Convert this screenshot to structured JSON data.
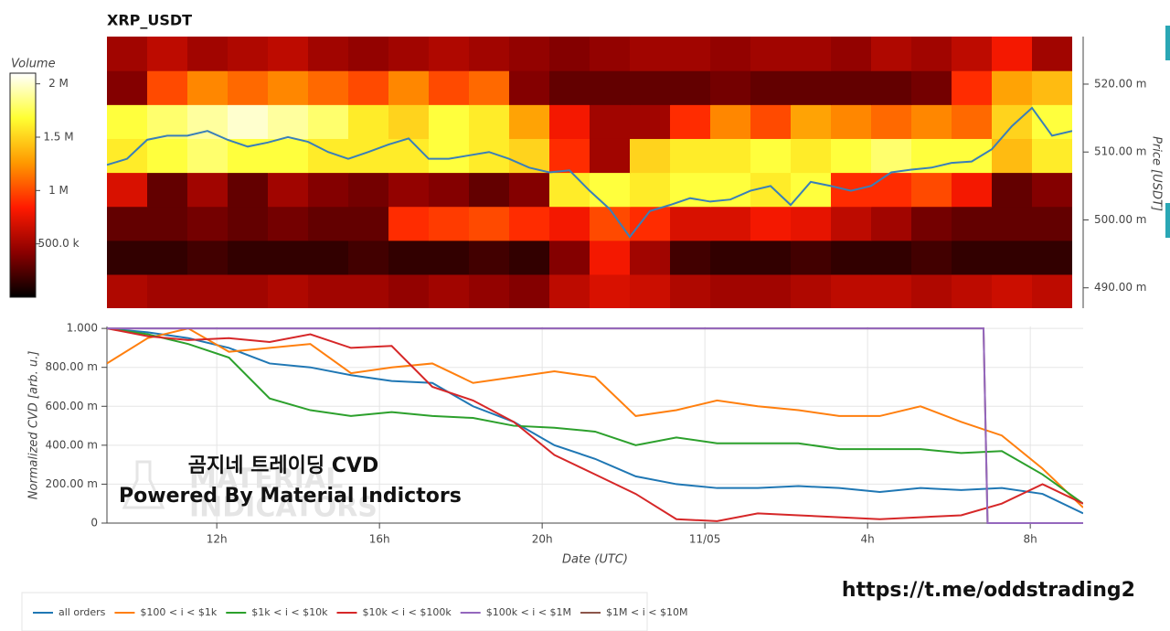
{
  "chart_data": [
    {
      "type": "heatmap",
      "title": "XRP_USDT",
      "xlim": [
        9.3,
        33.3
      ],
      "xbins": [
        9.3,
        10.3,
        11.3,
        12.3,
        13.3,
        14.3,
        15.3,
        16.3,
        17.3,
        18.3,
        19.3,
        20.3,
        21.3,
        22.3,
        23.3,
        24.3,
        25.3,
        26.3,
        27.3,
        28.3,
        29.3,
        30.3,
        31.3,
        32.3,
        33.3
      ],
      "ybins": [
        0.487,
        0.492,
        0.497,
        0.502,
        0.507,
        0.512,
        0.517,
        0.522,
        0.527
      ],
      "ylim": [
        0.487,
        0.527
      ],
      "yticks": [
        {
          "value": 0.49,
          "label": "490.00 m"
        },
        {
          "value": 0.5,
          "label": "500.00 m"
        },
        {
          "value": 0.51,
          "label": "510.00 m"
        },
        {
          "value": 0.52,
          "label": "520.00 m"
        }
      ],
      "ylabel": "Price [USDT]",
      "z": [
        [
          0.55,
          0.5,
          0.5,
          0.5,
          0.55,
          0.5,
          0.5,
          0.45,
          0.5,
          0.45,
          0.4,
          0.6,
          0.7,
          0.65,
          0.55,
          0.5,
          0.5,
          0.55,
          0.6,
          0.6,
          0.55,
          0.6,
          0.65,
          0.6
        ],
        [
          0.15,
          0.15,
          0.2,
          0.15,
          0.15,
          0.15,
          0.2,
          0.15,
          0.15,
          0.2,
          0.15,
          0.4,
          0.8,
          0.5,
          0.2,
          0.15,
          0.15,
          0.2,
          0.15,
          0.15,
          0.2,
          0.15,
          0.15,
          0.15
        ],
        [
          0.3,
          0.3,
          0.35,
          0.3,
          0.35,
          0.3,
          0.3,
          0.9,
          0.95,
          1.0,
          0.9,
          0.8,
          1.0,
          0.9,
          0.7,
          0.7,
          0.8,
          0.75,
          0.6,
          0.5,
          0.35,
          0.3,
          0.3,
          0.3
        ],
        [
          0.7,
          0.3,
          0.5,
          0.3,
          0.5,
          0.4,
          0.35,
          0.45,
          0.4,
          0.3,
          0.4,
          1.6,
          1.7,
          1.6,
          1.7,
          1.7,
          1.6,
          1.7,
          0.9,
          0.9,
          1.0,
          0.8,
          0.3,
          0.4
        ],
        [
          1.6,
          1.7,
          1.8,
          1.7,
          1.7,
          1.6,
          1.6,
          1.6,
          1.7,
          1.6,
          1.5,
          0.9,
          0.5,
          1.5,
          1.6,
          1.6,
          1.7,
          1.6,
          1.7,
          1.8,
          1.7,
          1.7,
          1.4,
          1.6
        ],
        [
          1.7,
          1.8,
          1.9,
          2.0,
          1.9,
          1.8,
          1.6,
          1.5,
          1.7,
          1.6,
          1.3,
          0.8,
          0.5,
          0.5,
          0.9,
          1.2,
          1.0,
          1.3,
          1.2,
          1.1,
          1.2,
          1.1,
          1.5,
          1.7
        ],
        [
          0.4,
          1.0,
          1.2,
          1.1,
          1.2,
          1.1,
          1.0,
          1.2,
          1.0,
          1.1,
          0.4,
          0.3,
          0.3,
          0.3,
          0.3,
          0.35,
          0.3,
          0.3,
          0.3,
          0.3,
          0.35,
          0.9,
          1.3,
          1.4
        ],
        [
          0.5,
          0.6,
          0.5,
          0.55,
          0.6,
          0.5,
          0.45,
          0.5,
          0.55,
          0.5,
          0.45,
          0.4,
          0.45,
          0.5,
          0.5,
          0.45,
          0.5,
          0.5,
          0.45,
          0.55,
          0.5,
          0.6,
          0.8,
          0.5
        ]
      ],
      "colorscale": [
        "#000000",
        "#8b0000",
        "#ff1a00",
        "#ff9900",
        "#ffff33",
        "#ffffff"
      ],
      "colorbar": {
        "title": "Volume",
        "zlim": [
          0,
          2.1
        ],
        "ticks": [
          {
            "value": 0.5,
            "label": "500.0 k"
          },
          {
            "value": 1,
            "label": "1 M"
          },
          {
            "value": 1.5,
            "label": "1.5 M"
          },
          {
            "value": 2,
            "label": "2 M"
          }
        ]
      },
      "price": {
        "color": "#3a7fb8",
        "x": [
          9.3,
          9.8,
          10.3,
          10.8,
          11.3,
          11.8,
          12.3,
          12.8,
          13.3,
          13.8,
          14.3,
          14.8,
          15.3,
          15.8,
          16.3,
          16.8,
          17.3,
          17.8,
          18.3,
          18.8,
          19.3,
          19.8,
          20.3,
          20.8,
          21.3,
          21.8,
          22.3,
          22.8,
          23.3,
          23.8,
          24.3,
          24.8,
          25.3,
          25.8,
          26.3,
          26.8,
          27.3,
          27.8,
          28.3,
          28.8,
          29.3,
          29.8,
          30.3,
          30.8,
          31.3,
          31.8,
          32.3,
          32.8,
          33.3
        ],
        "values": [
          0.5081,
          0.509,
          0.5118,
          0.5124,
          0.5124,
          0.5131,
          0.5118,
          0.5108,
          0.5114,
          0.5122,
          0.5115,
          0.51,
          0.509,
          0.51,
          0.5111,
          0.512,
          0.509,
          0.509,
          0.5095,
          0.51,
          0.509,
          0.5077,
          0.507,
          0.5073,
          0.5043,
          0.5016,
          0.4975,
          0.5013,
          0.5022,
          0.5032,
          0.5027,
          0.503,
          0.5043,
          0.505,
          0.5022,
          0.5056,
          0.505,
          0.5043,
          0.505,
          0.507,
          0.5074,
          0.5077,
          0.5084,
          0.5086,
          0.5104,
          0.5138,
          0.5165,
          0.5124,
          0.5131
        ]
      }
    },
    {
      "type": "line",
      "xlabel": "Date (UTC)",
      "ylabel": "Normalized CVD [arb. u.]",
      "xlim": [
        9.3,
        33.3
      ],
      "xticks": [
        {
          "value": 12,
          "label": "12h"
        },
        {
          "value": 16,
          "label": "16h"
        },
        {
          "value": 20,
          "label": "20h"
        },
        {
          "value": 24,
          "label": "11/05"
        },
        {
          "value": 28,
          "label": "4h"
        },
        {
          "value": 32,
          "label": "8h"
        }
      ],
      "ylim": [
        0,
        1.01
      ],
      "yticks": [
        0,
        {
          "value": 0.2,
          "label": "200.00 m"
        },
        {
          "value": 0.4,
          "label": "400.00 m"
        },
        {
          "value": 0.6,
          "label": "600.00 m"
        },
        {
          "value": 0.8,
          "label": "800.00 m"
        },
        {
          "value": 1,
          "label": "1.000"
        }
      ],
      "grid": true,
      "x": [
        9.3,
        10.3,
        11.3,
        12.3,
        13.3,
        14.3,
        15.3,
        16.3,
        17.3,
        18.3,
        19.3,
        20.3,
        21.3,
        22.3,
        23.3,
        24.3,
        25.3,
        26.3,
        27.3,
        28.3,
        29.3,
        30.3,
        31.3,
        32.3,
        33.3
      ],
      "series": [
        {
          "name": "all orders",
          "color": "#1f77b4",
          "values": [
            1.0,
            0.98,
            0.95,
            0.9,
            0.82,
            0.8,
            0.76,
            0.73,
            0.72,
            0.6,
            0.52,
            0.4,
            0.33,
            0.24,
            0.2,
            0.18,
            0.18,
            0.19,
            0.18,
            0.16,
            0.18,
            0.17,
            0.18,
            0.15,
            0.05
          ]
        },
        {
          "name": "$100 < i < $1k",
          "color": "#ff7f0e",
          "values": [
            0.82,
            0.95,
            1.0,
            0.88,
            0.9,
            0.92,
            0.77,
            0.8,
            0.82,
            0.72,
            0.75,
            0.78,
            0.75,
            0.55,
            0.58,
            0.63,
            0.6,
            0.58,
            0.55,
            0.55,
            0.6,
            0.52,
            0.45,
            0.28,
            0.08
          ]
        },
        {
          "name": "$1k < i < $10k",
          "color": "#2ca02c",
          "values": [
            1.0,
            0.97,
            0.92,
            0.85,
            0.64,
            0.58,
            0.55,
            0.57,
            0.55,
            0.54,
            0.5,
            0.49,
            0.47,
            0.4,
            0.44,
            0.41,
            0.41,
            0.41,
            0.38,
            0.38,
            0.38,
            0.36,
            0.37,
            0.25,
            0.1
          ]
        },
        {
          "name": "$10k < i < $100k",
          "color": "#d62728",
          "values": [
            1.0,
            0.96,
            0.94,
            0.95,
            0.93,
            0.97,
            0.9,
            0.91,
            0.7,
            0.63,
            0.52,
            0.35,
            0.25,
            0.15,
            0.02,
            0.01,
            0.05,
            0.04,
            0.03,
            0.02,
            0.03,
            0.04,
            0.1,
            0.2,
            0.1
          ]
        },
        {
          "name": "$1M < i < $10M",
          "color": "#8c564b",
          "x": [
            9.3,
            30.85,
            30.95,
            33.3
          ],
          "values": [
            1,
            1,
            0,
            0
          ]
        },
        {
          "name": "$100k < i < $1M",
          "color": "#9467bd",
          "x": [
            9.3,
            30.85,
            30.95,
            33.3
          ],
          "values": [
            1,
            1,
            0,
            0
          ]
        }
      ],
      "legend_order": [
        0,
        1,
        2,
        3,
        5,
        4
      ]
    }
  ],
  "annotations": [
    "곰지네 트레이딩 CVD",
    "Powered By Material Indictors",
    "https://t.me/oddstrading2"
  ],
  "watermark": [
    "MATERIAL",
    "INDICATORS"
  ]
}
